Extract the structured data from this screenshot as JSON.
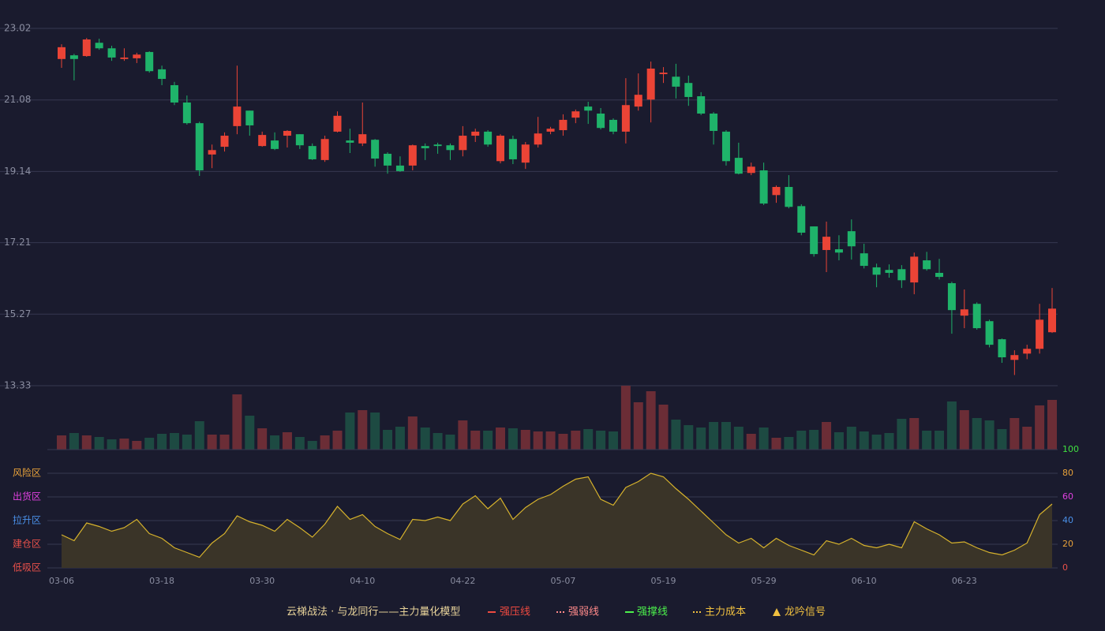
{
  "chart_data": [
    {
      "type": "candlestick",
      "categories": [
        "03-06",
        null,
        null,
        null,
        null,
        null,
        null,
        null,
        "03-18",
        null,
        null,
        null,
        null,
        null,
        null,
        null,
        "03-30",
        null,
        null,
        null,
        null,
        null,
        null,
        null,
        "04-10",
        null,
        null,
        null,
        null,
        null,
        null,
        null,
        "04-22",
        null,
        null,
        null,
        null,
        null,
        null,
        null,
        "05-07",
        null,
        null,
        null,
        null,
        null,
        null,
        null,
        "05-19",
        null,
        null,
        null,
        null,
        null,
        null,
        null,
        "05-29",
        null,
        null,
        null,
        null,
        null,
        null,
        null,
        "06-10",
        null,
        null,
        null,
        null,
        null,
        null,
        null,
        "06-23",
        null,
        null,
        null,
        null,
        null,
        null,
        null
      ],
      "open": [
        22.19,
        22.29,
        22.27,
        22.63,
        22.48,
        22.19,
        22.21,
        22.38,
        21.91,
        21.48,
        21.01,
        20.45,
        19.6,
        19.81,
        20.37,
        20.79,
        19.83,
        19.98,
        20.11,
        20.15,
        19.83,
        19.45,
        20.22,
        19.98,
        19.9,
        20.0,
        19.62,
        19.3,
        19.3,
        19.83,
        19.87,
        19.85,
        19.72,
        20.11,
        20.22,
        19.42,
        20.02,
        19.38,
        19.87,
        20.22,
        20.26,
        20.6,
        20.9,
        20.71,
        20.54,
        20.22,
        20.9,
        21.09,
        21.78,
        21.71,
        21.54,
        21.18,
        20.71,
        20.22,
        19.51,
        19.1,
        19.17,
        18.5,
        18.72,
        18.2,
        17.65,
        17.01,
        17.03,
        17.52,
        16.92,
        16.54,
        16.47,
        16.49,
        16.13,
        16.73,
        16.39,
        16.11,
        15.23,
        15.55,
        15.08,
        14.59,
        14.03,
        14.2,
        14.33,
        14.78
      ],
      "high": [
        22.59,
        22.33,
        22.76,
        22.74,
        22.55,
        22.48,
        22.36,
        22.4,
        22.01,
        21.57,
        21.2,
        20.49,
        19.87,
        20.2,
        22.01,
        20.79,
        20.22,
        20.2,
        20.26,
        20.15,
        19.9,
        20.11,
        20.77,
        20.3,
        21.01,
        20.02,
        19.66,
        19.55,
        19.87,
        19.9,
        19.92,
        19.9,
        20.37,
        20.3,
        20.26,
        20.15,
        20.11,
        19.94,
        20.62,
        20.35,
        20.69,
        20.82,
        21.03,
        20.86,
        20.58,
        21.67,
        21.8,
        22.12,
        21.97,
        22.06,
        21.74,
        21.29,
        20.75,
        20.26,
        19.92,
        19.38,
        19.38,
        18.76,
        19.04,
        18.25,
        17.65,
        17.78,
        17.41,
        17.84,
        17.18,
        16.64,
        16.62,
        16.6,
        16.94,
        16.96,
        16.77,
        16.15,
        15.94,
        15.59,
        15.12,
        14.61,
        14.29,
        14.44,
        15.55,
        15.98
      ],
      "low": [
        21.95,
        21.61,
        22.25,
        22.44,
        22.14,
        22.14,
        22.08,
        21.82,
        21.48,
        20.94,
        20.41,
        19.02,
        19.23,
        19.68,
        20.15,
        20.11,
        19.81,
        19.72,
        19.79,
        19.75,
        19.45,
        19.4,
        20.2,
        19.64,
        19.83,
        19.27,
        19.08,
        19.13,
        19.17,
        19.45,
        19.62,
        19.45,
        19.55,
        19.94,
        19.81,
        19.36,
        19.34,
        19.21,
        19.79,
        20.15,
        20.11,
        20.45,
        20.43,
        20.28,
        20.15,
        19.9,
        20.79,
        20.47,
        21.54,
        21.12,
        20.92,
        20.67,
        19.87,
        19.3,
        19.06,
        19.04,
        18.23,
        18.29,
        18.14,
        17.41,
        16.83,
        16.41,
        16.73,
        16.75,
        16.51,
        16.0,
        16.26,
        15.98,
        15.81,
        16.45,
        16.21,
        14.74,
        14.89,
        14.85,
        14.37,
        13.95,
        13.62,
        14.05,
        14.2,
        14.76
      ],
      "close": [
        22.51,
        22.19,
        22.72,
        22.48,
        22.23,
        22.23,
        22.31,
        21.86,
        21.65,
        21.01,
        20.45,
        19.17,
        19.72,
        20.11,
        20.9,
        20.39,
        20.13,
        19.75,
        20.24,
        19.85,
        19.47,
        20.02,
        20.65,
        19.92,
        20.15,
        19.49,
        19.3,
        19.15,
        19.85,
        19.77,
        19.83,
        19.72,
        20.11,
        20.22,
        19.87,
        20.11,
        19.47,
        19.87,
        20.17,
        20.3,
        20.54,
        20.77,
        20.79,
        20.32,
        20.22,
        20.94,
        21.22,
        21.93,
        21.82,
        21.44,
        21.16,
        20.71,
        20.24,
        19.42,
        19.08,
        19.27,
        18.27,
        18.72,
        18.18,
        17.48,
        16.9,
        17.37,
        16.94,
        17.11,
        16.58,
        16.34,
        16.39,
        16.19,
        16.83,
        16.49,
        16.28,
        15.38,
        15.4,
        14.89,
        14.44,
        14.1,
        14.16,
        14.33,
        15.12,
        15.42
      ],
      "up_color": "#eb4436",
      "down_color": "#1fb36a",
      "ylim": [
        13.33,
        23.02
      ],
      "yticks": [
        13.33,
        15.27,
        17.21,
        19.14,
        21.08,
        23.02
      ],
      "grid": true
    },
    {
      "type": "bar",
      "values": [
        18,
        21,
        18,
        16,
        13,
        14,
        11,
        15,
        20,
        21,
        19,
        36,
        19,
        19,
        70,
        43,
        27,
        18,
        22,
        16,
        11,
        18,
        24,
        47,
        50,
        47,
        25,
        29,
        42,
        28,
        21,
        19,
        37,
        24,
        24,
        28,
        27,
        25,
        23,
        23,
        20,
        24,
        26,
        24,
        23,
        81,
        60,
        74,
        57,
        38,
        31,
        28,
        35,
        35,
        29,
        20,
        28,
        15,
        16,
        24,
        25,
        35,
        22,
        29,
        23,
        19,
        21,
        39,
        40,
        24,
        24,
        61,
        50,
        40,
        37,
        26,
        40,
        29,
        56,
        63
      ],
      "up_color": "#6b2d36",
      "down_color": "#1d4a42"
    },
    {
      "type": "area",
      "values": [
        28,
        23,
        38,
        35,
        31,
        34,
        41,
        29,
        25,
        17,
        13,
        9,
        21,
        29,
        44,
        39,
        36,
        31,
        41,
        34,
        26,
        37,
        52,
        41,
        45,
        35,
        29,
        24,
        41,
        40,
        43,
        40,
        54,
        61,
        50,
        59,
        41,
        51,
        58,
        62,
        69,
        75,
        77,
        58,
        53,
        68,
        73,
        80,
        77,
        67,
        58,
        48,
        38,
        28,
        21,
        25,
        17,
        25,
        19,
        15,
        11,
        23,
        20,
        25,
        19,
        17,
        20,
        17,
        39,
        33,
        28,
        21,
        22,
        17,
        13,
        11,
        15,
        21,
        45,
        54
      ],
      "color": "#d6b22c",
      "fill": "#3a3428",
      "ylim": [
        0,
        100
      ],
      "yticks": [
        0,
        20,
        40,
        60,
        80,
        100
      ],
      "ytick_colors": [
        "#e8504a",
        "#e8a23a",
        "#4a90e8",
        "#e040e0",
        "#e8a23a",
        "#40e040"
      ],
      "zones": [
        {
          "value": 80,
          "label": "风险区",
          "color": "#e8a23a"
        },
        {
          "value": 60,
          "label": "出货区",
          "color": "#e040e0"
        },
        {
          "value": 40,
          "label": "拉升区",
          "color": "#4a90e8"
        },
        {
          "value": 20,
          "label": "建仓区",
          "color": "#e8504a"
        },
        {
          "value": 0,
          "label": "低吸区",
          "color": "#e8504a"
        }
      ]
    }
  ],
  "legend": {
    "title": "云梯战法 · 与龙同行——主力量化模型",
    "items": [
      {
        "name": "强压线",
        "color": "#ee4a40"
      },
      {
        "name": "强弱线",
        "color": "#ff8a8a"
      },
      {
        "name": "强撑线",
        "color": "#4cf04c"
      },
      {
        "name": "主力成本",
        "color": "#f0c040"
      },
      {
        "name": "龙吟信号",
        "color": "#f0c040"
      }
    ]
  }
}
